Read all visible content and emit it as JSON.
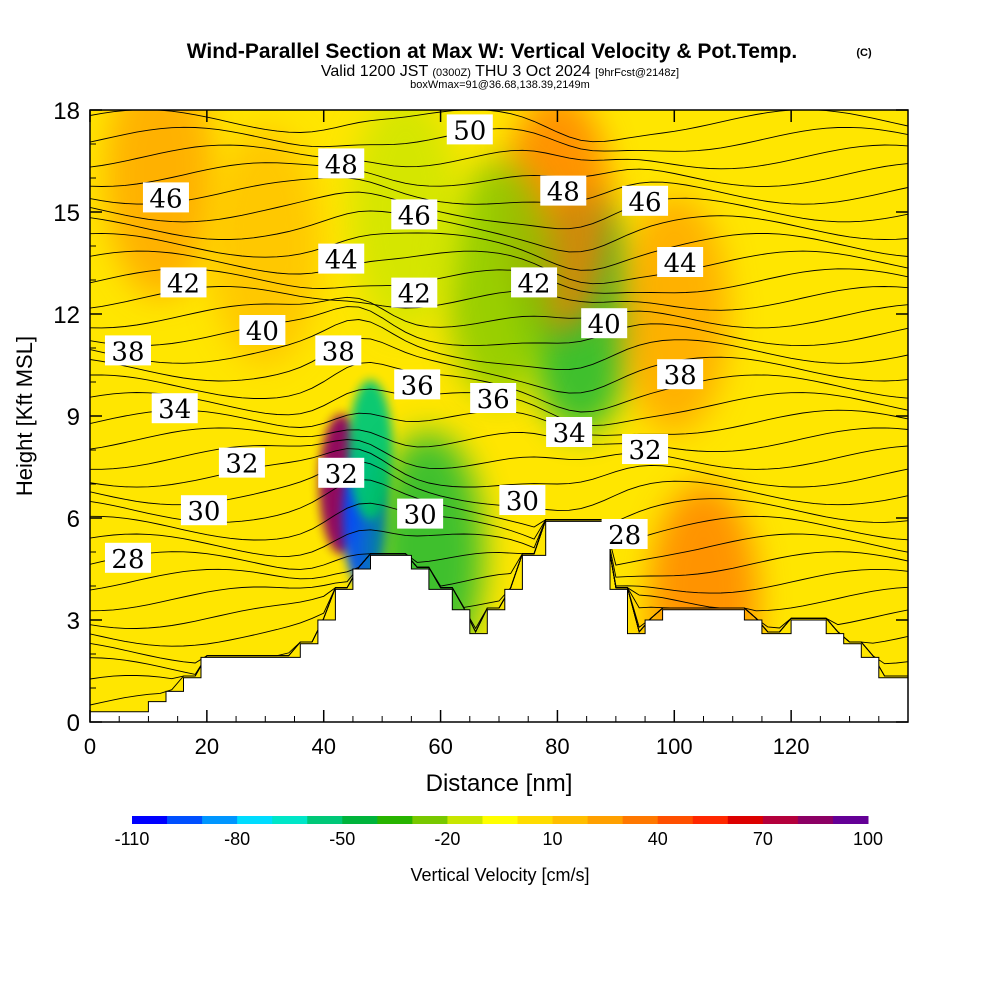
{
  "chart_data": {
    "type": "heatmap",
    "title": "Wind-Parallel Section at Max W: Vertical Velocity & Pot.Temp.",
    "title_mark": "(C)",
    "subtitle_prefix": "Valid 1200 JST",
    "subtitle_utc": "(0300Z)",
    "subtitle_date": "THU 3 Oct 2024",
    "subtitle_fcst": "[9hrFcst@2148z]",
    "subtitle_box": "boxWmax=91@36.68,138.39,2149m",
    "xlabel": "Distance [nm]",
    "ylabel": "Height [Kft MSL]",
    "xlim": [
      0,
      140
    ],
    "ylim": [
      0,
      18
    ],
    "x_ticks": [
      "0",
      "20",
      "40",
      "60",
      "80",
      "100",
      "120"
    ],
    "y_ticks": [
      "0",
      "3",
      "6",
      "9",
      "12",
      "15",
      "18"
    ],
    "colorbar": {
      "label": "Vertical Velocity [cm/s]",
      "tick_labels": [
        "-110",
        "-80",
        "-50",
        "-20",
        "10",
        "40",
        "70",
        "100"
      ],
      "colors": [
        "#0000ff",
        "#0050ff",
        "#0096ff",
        "#00dcff",
        "#00e6c8",
        "#00c878",
        "#00b43c",
        "#28b400",
        "#78c800",
        "#c8e600",
        "#ffff00",
        "#ffdc00",
        "#ffbe00",
        "#ffa000",
        "#ff7800",
        "#ff5000",
        "#ff2800",
        "#dc0000",
        "#b4003c",
        "#8c0064",
        "#640096"
      ]
    },
    "terrain": [
      [
        0,
        0.3
      ],
      [
        10,
        0.3
      ],
      [
        10,
        0.6
      ],
      [
        13,
        0.6
      ],
      [
        13,
        0.9
      ],
      [
        16,
        0.9
      ],
      [
        16,
        1.3
      ],
      [
        19,
        1.3
      ],
      [
        19,
        1.9
      ],
      [
        36,
        1.9
      ],
      [
        36,
        2.3
      ],
      [
        39,
        2.3
      ],
      [
        39,
        3.0
      ],
      [
        42,
        3.0
      ],
      [
        42,
        3.9
      ],
      [
        45,
        3.9
      ],
      [
        45,
        4.5
      ],
      [
        48,
        4.5
      ],
      [
        48,
        4.9
      ],
      [
        55,
        4.9
      ],
      [
        55,
        4.5
      ],
      [
        58,
        4.5
      ],
      [
        58,
        3.9
      ],
      [
        62,
        3.9
      ],
      [
        62,
        3.3
      ],
      [
        65,
        3.3
      ],
      [
        65,
        2.6
      ],
      [
        68,
        2.6
      ],
      [
        68,
        3.3
      ],
      [
        71,
        3.3
      ],
      [
        71,
        3.9
      ],
      [
        74,
        3.9
      ],
      [
        74,
        4.9
      ],
      [
        78,
        4.9
      ],
      [
        78,
        5.9
      ],
      [
        89,
        5.9
      ],
      [
        89,
        3.9
      ],
      [
        92,
        3.9
      ],
      [
        92,
        2.6
      ],
      [
        95,
        2.6
      ],
      [
        95,
        3.0
      ],
      [
        98,
        3.0
      ],
      [
        98,
        3.3
      ],
      [
        112,
        3.3
      ],
      [
        112,
        3.0
      ],
      [
        115,
        3.0
      ],
      [
        115,
        2.6
      ],
      [
        120,
        2.6
      ],
      [
        120,
        3.0
      ],
      [
        126,
        3.0
      ],
      [
        126,
        2.6
      ],
      [
        129,
        2.6
      ],
      [
        129,
        2.3
      ],
      [
        132,
        2.3
      ],
      [
        132,
        1.9
      ],
      [
        135,
        1.9
      ],
      [
        135,
        1.3
      ],
      [
        140,
        1.3
      ],
      [
        140,
        0
      ],
      [
        0,
        0
      ]
    ],
    "vertical_velocity_features": [
      {
        "x": 43,
        "y": 7.0,
        "value": 90
      },
      {
        "x": 47,
        "y": 6.0,
        "value": -100
      },
      {
        "x": 48,
        "y": 8.0,
        "value": -60
      },
      {
        "x": 58,
        "y": 5.0,
        "value": -45
      },
      {
        "x": 84,
        "y": 12.0,
        "value": -45
      },
      {
        "x": 80,
        "y": 15.0,
        "value": 40
      },
      {
        "x": 70,
        "y": 13.0,
        "value": -25
      },
      {
        "x": 54,
        "y": 15.0,
        "value": -20
      },
      {
        "x": 100,
        "y": 12.0,
        "value": 25
      },
      {
        "x": 105,
        "y": 3.5,
        "value": 40
      },
      {
        "x": 12,
        "y": 16.0,
        "value": 22
      },
      {
        "x": 30,
        "y": 14.0,
        "value": 18
      }
    ],
    "theta_labels": [
      {
        "text": "50",
        "x": 65,
        "y": 17.4
      },
      {
        "text": "48",
        "x": 43,
        "y": 16.4
      },
      {
        "text": "48",
        "x": 81,
        "y": 15.6
      },
      {
        "text": "46",
        "x": 13,
        "y": 15.4
      },
      {
        "text": "46",
        "x": 55.5,
        "y": 14.9
      },
      {
        "text": "46",
        "x": 95,
        "y": 15.3
      },
      {
        "text": "44",
        "x": 43,
        "y": 13.6
      },
      {
        "text": "44",
        "x": 101,
        "y": 13.5
      },
      {
        "text": "42",
        "x": 16,
        "y": 12.9
      },
      {
        "text": "42",
        "x": 55.5,
        "y": 12.6
      },
      {
        "text": "42",
        "x": 76,
        "y": 12.9
      },
      {
        "text": "40",
        "x": 29.5,
        "y": 11.5
      },
      {
        "text": "40",
        "x": 88,
        "y": 11.7
      },
      {
        "text": "38",
        "x": 6.5,
        "y": 10.9
      },
      {
        "text": "38",
        "x": 42.5,
        "y": 10.9
      },
      {
        "text": "38",
        "x": 101,
        "y": 10.2
      },
      {
        "text": "36",
        "x": 56,
        "y": 9.9
      },
      {
        "text": "36",
        "x": 69,
        "y": 9.5
      },
      {
        "text": "34",
        "x": 14.5,
        "y": 9.2
      },
      {
        "text": "34",
        "x": 82,
        "y": 8.5
      },
      {
        "text": "32",
        "x": 26,
        "y": 7.6
      },
      {
        "text": "32",
        "x": 43,
        "y": 7.3
      },
      {
        "text": "32",
        "x": 95,
        "y": 8.0
      },
      {
        "text": "30",
        "x": 19.5,
        "y": 6.2
      },
      {
        "text": "30",
        "x": 56.5,
        "y": 6.1
      },
      {
        "text": "30",
        "x": 74,
        "y": 6.5
      },
      {
        "text": "28",
        "x": 6.5,
        "y": 4.8
      },
      {
        "text": "28",
        "x": 91.5,
        "y": 5.5
      }
    ]
  }
}
